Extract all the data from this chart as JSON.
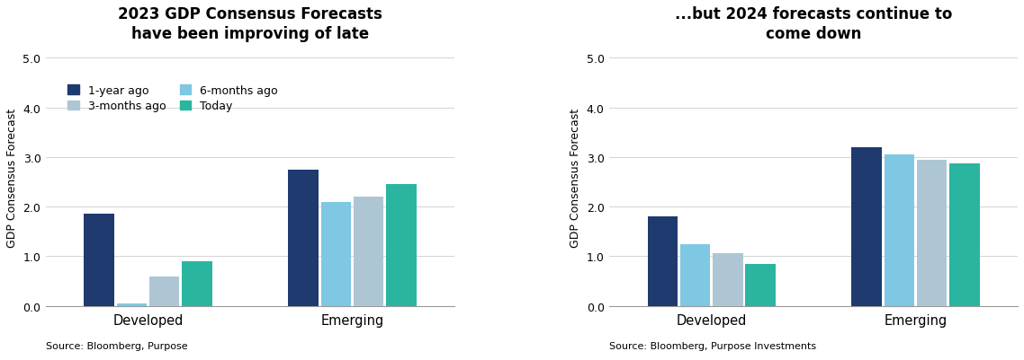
{
  "chart1": {
    "title": "2023 GDP Consensus Forecasts\nhave been improving of late",
    "categories": [
      "Developed",
      "Emerging"
    ],
    "series": {
      "1-year ago": [
        1.85,
        2.75
      ],
      "6-months ago": [
        0.05,
        2.1
      ],
      "3-months ago": [
        0.6,
        2.2
      ],
      "Today": [
        0.9,
        2.45
      ]
    },
    "ylabel": "GDP Consensus Forecast",
    "ylim": [
      0,
      5.2
    ],
    "yticks": [
      0.0,
      1.0,
      2.0,
      3.0,
      4.0,
      5.0
    ],
    "source": "Source: Bloomberg, Purpose"
  },
  "chart2": {
    "title": "...but 2024 forecasts continue to\ncome down",
    "categories": [
      "Developed",
      "Emerging"
    ],
    "series": {
      "1-year ago": [
        1.8,
        3.2
      ],
      "6-months ago": [
        1.25,
        3.05
      ],
      "3-months ago": [
        1.07,
        2.95
      ],
      "Today": [
        0.85,
        2.88
      ]
    },
    "ylabel": "GDP Consensus Forecast",
    "ylim": [
      0,
      5.2
    ],
    "yticks": [
      0.0,
      1.0,
      2.0,
      3.0,
      4.0,
      5.0
    ],
    "source": "Source: Bloomberg, Purpose Investments"
  },
  "colors": {
    "1-year ago": "#1e3a6e",
    "6-months ago": "#7ec8e3",
    "3-months ago": "#aec6d4",
    "Today": "#2ab5a0"
  },
  "legend_order": [
    "1-year ago",
    "3-months ago",
    "6-months ago",
    "Today"
  ],
  "series_keys": [
    "1-year ago",
    "6-months ago",
    "3-months ago",
    "Today"
  ]
}
